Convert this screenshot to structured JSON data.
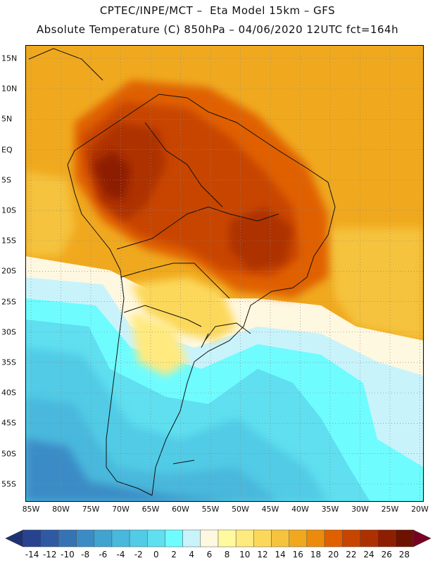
{
  "title_line1": "CPTEC/INPE/MCT –  Eta Model 15km – GFS",
  "title_line2": "Absolute Temperature (C) 850hPa – 04/06/2020 12UTC fct=164h",
  "lat_labels": [
    "15N",
    "10N",
    "5N",
    "EQ",
    "5S",
    "10S",
    "15S",
    "20S",
    "25S",
    "30S",
    "35S",
    "40S",
    "45S",
    "50S",
    "55S"
  ],
  "lon_labels": [
    "85W",
    "80W",
    "75W",
    "70W",
    "65W",
    "60W",
    "55W",
    "50W",
    "45W",
    "40W",
    "35W",
    "30W",
    "25W",
    "20W"
  ],
  "colorbar": {
    "labels": [
      "-14",
      "-12",
      "-10",
      "-8",
      "-6",
      "-4",
      "-2",
      "0",
      "2",
      "4",
      "6",
      "8",
      "10",
      "12",
      "14",
      "16",
      "18",
      "20",
      "22",
      "24",
      "26",
      "28"
    ],
    "colors": [
      "#27438f",
      "#2f5aa3",
      "#3574b4",
      "#3b8cc6",
      "#41a3cf",
      "#48b8dc",
      "#51cbe6",
      "#5fdfef",
      "#6ffcff",
      "#c9f3fb",
      "#fff8e0",
      "#fffaa0",
      "#ffea7f",
      "#fcd85a",
      "#f5c33d",
      "#f0a91e",
      "#ec8b0b",
      "#e06000",
      "#c84500",
      "#ad3100",
      "#8e1e00",
      "#6e1200"
    ],
    "under_color": "#1e3175",
    "over_color": "#7a0023"
  },
  "colors": {
    "grid": "#888888",
    "coast": "#111111"
  }
}
